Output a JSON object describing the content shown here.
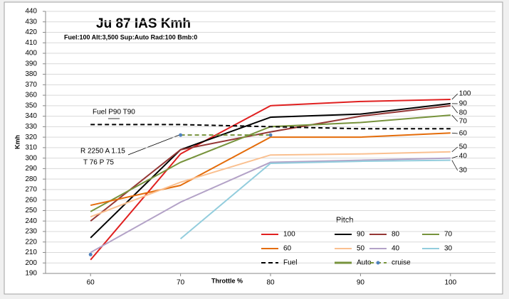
{
  "chart_data": {
    "type": "line",
    "title": "Ju 87 IAS Kmh",
    "subtitle": "Fuel:100 Alt:3,500 Sup:Auto Rad:100 Bmb:0",
    "x_label": "Throttle %",
    "y_label": "Kmh",
    "legend_title": "Pitch",
    "x": [
      60,
      70,
      80,
      90,
      100
    ],
    "xlim": [
      55,
      105
    ],
    "xticks": [
      60,
      70,
      80,
      90,
      100
    ],
    "ylim": [
      190,
      440
    ],
    "yticks": [
      190,
      200,
      210,
      220,
      230,
      240,
      250,
      260,
      270,
      280,
      290,
      300,
      310,
      320,
      330,
      340,
      350,
      360,
      370,
      380,
      390,
      400,
      410,
      420,
      430,
      440
    ],
    "grid": true,
    "series": [
      {
        "name": "100",
        "color": "#e02020",
        "values": [
          203,
          304,
          350,
          354,
          356
        ],
        "end_label": true
      },
      {
        "name": "90",
        "color": "#000000",
        "values": [
          224,
          308,
          339,
          342,
          352
        ],
        "end_label": true
      },
      {
        "name": "80",
        "color": "#953735",
        "values": [
          240,
          308,
          325,
          340,
          350
        ],
        "end_label": true
      },
      {
        "name": "70",
        "color": "#77933c",
        "values": [
          249,
          296,
          330,
          334,
          341
        ],
        "end_label": true
      },
      {
        "name": "60",
        "color": "#e46c0a",
        "values": [
          255,
          274,
          320,
          320,
          324
        ],
        "end_label": true
      },
      {
        "name": "50",
        "color": "#fac090",
        "values": [
          244,
          277,
          303,
          304,
          306
        ],
        "end_label": true
      },
      {
        "name": "40",
        "color": "#b3a2c7",
        "values": [
          210,
          258,
          296,
          298,
          300
        ],
        "end_label": true
      },
      {
        "name": "30",
        "color": "#93cddd",
        "values": [
          null,
          223,
          295,
          297,
          298
        ],
        "end_label": true
      },
      {
        "name": "Fuel",
        "color": "#000000",
        "dash": true,
        "values": [
          332,
          332,
          330,
          328,
          328
        ]
      },
      {
        "name": "Auto",
        "color": "#77933c",
        "thick": true,
        "values": [
          null,
          null,
          null,
          null,
          null
        ]
      },
      {
        "name": "cruise",
        "color": "#77933c",
        "dash": true,
        "marker": "#4f81bd",
        "values": [
          null,
          322,
          322,
          null,
          null
        ]
      }
    ],
    "extra_points": [
      {
        "x": 60,
        "y": 208,
        "color": "#4f81bd"
      }
    ],
    "annotations": [
      "Fuel P90 T90",
      "R 2250  A 1.15",
      "T 76   P 75"
    ]
  }
}
